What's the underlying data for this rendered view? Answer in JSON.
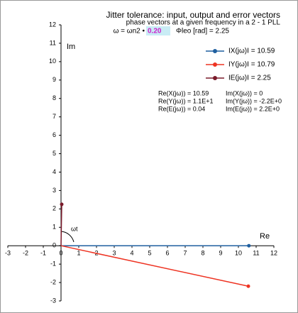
{
  "chart_data": {
    "type": "vector",
    "title": "Jitter tolerance: input, output and error vectors",
    "subtitle": "phase vectors at a given frequency in a 2 - 1 PLL",
    "formula_left": "ω = ωn2 •",
    "formula_value": "0.20",
    "formula_right": "Φleo [rad] = 2.25",
    "x_label": "Re",
    "y_label": "Im",
    "angle_label": "ωt",
    "xlim": [
      -3,
      12
    ],
    "ylim": [
      -3,
      12
    ],
    "xticks": [
      -3,
      -2,
      -1,
      0,
      1,
      2,
      3,
      4,
      5,
      6,
      7,
      8,
      9,
      10,
      11,
      12
    ],
    "yticks": [
      -3,
      -2,
      -1,
      0,
      1,
      2,
      3,
      4,
      5,
      6,
      7,
      8,
      9,
      10,
      11,
      12
    ],
    "series": [
      {
        "name": "IX(jω)I =  10.59",
        "color": "#1f5f9f",
        "x": [
          0,
          10.59
        ],
        "values": [
          0,
          0
        ]
      },
      {
        "name": "IY(jω)I =  10.79",
        "color": "#ee3322",
        "x": [
          0,
          10.56
        ],
        "values": [
          0,
          -2.2
        ]
      },
      {
        "name": "IE(jω)I =  2.25",
        "color": "#7a1a2a",
        "x": [
          0,
          0.04
        ],
        "values": [
          0,
          2.25
        ]
      }
    ],
    "annotations": [
      "Re(X(jω)) = 10.59",
      "Im(X(jω)) = 0",
      "Re(Y(jω)) = 1.1E+1",
      "Im(Y(jω)) = -2.2E+0",
      "Re(E(jω)) = 0.04",
      "Im(E(jω)) = 2.2E+0"
    ]
  }
}
